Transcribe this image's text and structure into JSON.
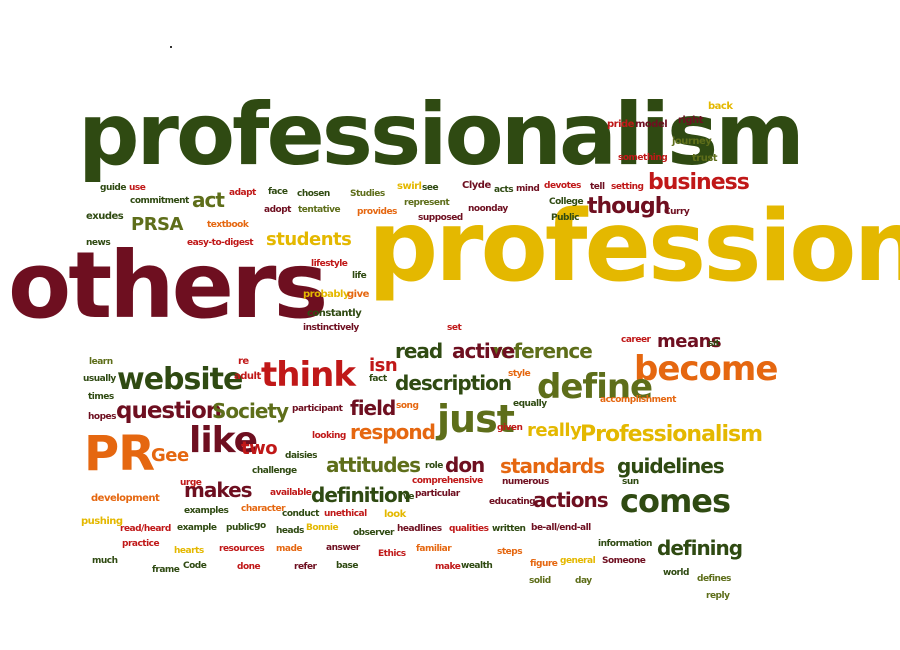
{
  "colors": {
    "dark_green": "#2f4a12",
    "olive_green": "#5e6e1a",
    "maroon": "#6e0f20",
    "red": "#c01818",
    "orange": "#e56710",
    "gold": "#e4b800",
    "background": "#ffffff"
  },
  "words": [
    {
      "text": "professionalism",
      "color": "dark_green"
    },
    {
      "text": "professional",
      "color": "gold"
    },
    {
      "text": "others",
      "color": "maroon"
    },
    {
      "text": "PR",
      "color": "orange"
    },
    {
      "text": "become",
      "color": "orange"
    },
    {
      "text": "website",
      "color": "dark_green"
    },
    {
      "text": "think",
      "color": "red"
    },
    {
      "text": "just",
      "color": "olive_green"
    },
    {
      "text": "comes",
      "color": "dark_green"
    },
    {
      "text": "like",
      "color": "maroon"
    },
    {
      "text": "define",
      "color": "olive_green"
    },
    {
      "text": "question",
      "color": "maroon"
    },
    {
      "text": "business",
      "color": "red"
    },
    {
      "text": "though",
      "color": "maroon"
    },
    {
      "text": "Professionalism",
      "color": "gold"
    },
    {
      "text": "standards",
      "color": "orange"
    },
    {
      "text": "guidelines",
      "color": "dark_green"
    },
    {
      "text": "defining",
      "color": "dark_green"
    },
    {
      "text": "actions",
      "color": "maroon"
    },
    {
      "text": "attitudes",
      "color": "olive_green"
    },
    {
      "text": "definition",
      "color": "dark_green"
    },
    {
      "text": "makes",
      "color": "maroon"
    },
    {
      "text": "description",
      "color": "dark_green"
    },
    {
      "text": "reference",
      "color": "olive_green"
    },
    {
      "text": "active",
      "color": "maroon"
    },
    {
      "text": "read",
      "color": "dark_green"
    },
    {
      "text": "respond",
      "color": "orange"
    },
    {
      "text": "field",
      "color": "maroon"
    },
    {
      "text": "Society",
      "color": "olive_green"
    },
    {
      "text": "students",
      "color": "gold"
    },
    {
      "text": "means",
      "color": "maroon"
    },
    {
      "text": "really",
      "color": "gold"
    },
    {
      "text": "two",
      "color": "red"
    },
    {
      "text": "don",
      "color": "maroon"
    },
    {
      "text": "Gee",
      "color": "orange"
    },
    {
      "text": "act",
      "color": "olive_green"
    },
    {
      "text": "PRSA",
      "color": "olive_green"
    },
    {
      "text": "isn",
      "color": "red"
    },
    {
      "text": "guide",
      "color": "dark_green"
    },
    {
      "text": "use",
      "color": "red"
    },
    {
      "text": "commitment",
      "color": "dark_green"
    },
    {
      "text": "adapt",
      "color": "red"
    },
    {
      "text": "face",
      "color": "dark_green"
    },
    {
      "text": "adopt",
      "color": "maroon"
    },
    {
      "text": "chosen",
      "color": "dark_green"
    },
    {
      "text": "tentative",
      "color": "olive_green"
    },
    {
      "text": "Studies",
      "color": "olive_green"
    },
    {
      "text": "provides",
      "color": "orange"
    },
    {
      "text": "swirl",
      "color": "gold"
    },
    {
      "text": "see",
      "color": "dark_green"
    },
    {
      "text": "represent",
      "color": "olive_green"
    },
    {
      "text": "supposed",
      "color": "maroon"
    },
    {
      "text": "Clyde",
      "color": "maroon"
    },
    {
      "text": "acts",
      "color": "dark_green"
    },
    {
      "text": "mind",
      "color": "maroon"
    },
    {
      "text": "noonday",
      "color": "maroon"
    },
    {
      "text": "devotes",
      "color": "red"
    },
    {
      "text": "College",
      "color": "dark_green"
    },
    {
      "text": "Public",
      "color": "dark_green"
    },
    {
      "text": "tell",
      "color": "maroon"
    },
    {
      "text": "setting",
      "color": "red"
    },
    {
      "text": "Curry",
      "color": "maroon"
    },
    {
      "text": "exudes",
      "color": "dark_green"
    },
    {
      "text": "textbook",
      "color": "orange"
    },
    {
      "text": "news",
      "color": "dark_green"
    },
    {
      "text": "easy-to-digest",
      "color": "red"
    },
    {
      "text": "lifestyle",
      "color": "red"
    },
    {
      "text": "life",
      "color": "dark_green"
    },
    {
      "text": "probably",
      "color": "gold"
    },
    {
      "text": "give",
      "color": "orange"
    },
    {
      "text": "constantly",
      "color": "dark_green"
    },
    {
      "text": "instinctively",
      "color": "maroon"
    },
    {
      "text": "pride",
      "color": "red"
    },
    {
      "text": "model",
      "color": "maroon"
    },
    {
      "text": "right",
      "color": "maroon"
    },
    {
      "text": "back",
      "color": "gold"
    },
    {
      "text": "journey",
      "color": "olive_green"
    },
    {
      "text": "something",
      "color": "red"
    },
    {
      "text": "trust",
      "color": "olive_green"
    },
    {
      "text": "career",
      "color": "red"
    },
    {
      "text": "sit",
      "color": "dark_green"
    },
    {
      "text": "set",
      "color": "red"
    },
    {
      "text": "learn",
      "color": "olive_green"
    },
    {
      "text": "usually",
      "color": "dark_green"
    },
    {
      "text": "re",
      "color": "red"
    },
    {
      "text": "adult",
      "color": "red"
    },
    {
      "text": "fact",
      "color": "dark_green"
    },
    {
      "text": "style",
      "color": "orange"
    },
    {
      "text": "equally",
      "color": "dark_green"
    },
    {
      "text": "times",
      "color": "dark_green"
    },
    {
      "text": "participant",
      "color": "maroon"
    },
    {
      "text": "song",
      "color": "orange"
    },
    {
      "text": "accomplishment",
      "color": "orange"
    },
    {
      "text": "hopes",
      "color": "maroon"
    },
    {
      "text": "looking",
      "color": "red"
    },
    {
      "text": "given",
      "color": "red"
    },
    {
      "text": "challenge",
      "color": "dark_green"
    },
    {
      "text": "daisies",
      "color": "dark_green"
    },
    {
      "text": "role",
      "color": "dark_green"
    },
    {
      "text": "comprehensive",
      "color": "red"
    },
    {
      "text": "numerous",
      "color": "maroon"
    },
    {
      "text": "sun",
      "color": "dark_green"
    },
    {
      "text": "urge",
      "color": "red"
    },
    {
      "text": "development",
      "color": "orange"
    },
    {
      "text": "available",
      "color": "red"
    },
    {
      "text": "ve",
      "color": "dark_green"
    },
    {
      "text": "particular",
      "color": "maroon"
    },
    {
      "text": "educating",
      "color": "maroon"
    },
    {
      "text": "examples",
      "color": "dark_green"
    },
    {
      "text": "character",
      "color": "orange"
    },
    {
      "text": "conduct",
      "color": "dark_green"
    },
    {
      "text": "unethical",
      "color": "red"
    },
    {
      "text": "look",
      "color": "gold"
    },
    {
      "text": "pushing",
      "color": "gold"
    },
    {
      "text": "read/heard",
      "color": "red"
    },
    {
      "text": "example",
      "color": "dark_green"
    },
    {
      "text": "public",
      "color": "dark_green"
    },
    {
      "text": "go",
      "color": "dark_green"
    },
    {
      "text": "heads",
      "color": "dark_green"
    },
    {
      "text": "Bonnie",
      "color": "gold"
    },
    {
      "text": "observer",
      "color": "dark_green"
    },
    {
      "text": "headlines",
      "color": "maroon"
    },
    {
      "text": "qualities",
      "color": "red"
    },
    {
      "text": "written",
      "color": "dark_green"
    },
    {
      "text": "be-all/end-all",
      "color": "maroon"
    },
    {
      "text": "practice",
      "color": "red"
    },
    {
      "text": "hearts",
      "color": "gold"
    },
    {
      "text": "resources",
      "color": "red"
    },
    {
      "text": "made",
      "color": "orange"
    },
    {
      "text": "answer",
      "color": "maroon"
    },
    {
      "text": "Ethics",
      "color": "red"
    },
    {
      "text": "familiar",
      "color": "orange"
    },
    {
      "text": "steps",
      "color": "orange"
    },
    {
      "text": "information",
      "color": "dark_green"
    },
    {
      "text": "much",
      "color": "dark_green"
    },
    {
      "text": "frame",
      "color": "dark_green"
    },
    {
      "text": "Code",
      "color": "dark_green"
    },
    {
      "text": "done",
      "color": "red"
    },
    {
      "text": "refer",
      "color": "maroon"
    },
    {
      "text": "base",
      "color": "dark_green"
    },
    {
      "text": "make",
      "color": "red"
    },
    {
      "text": "wealth",
      "color": "dark_green"
    },
    {
      "text": "figure",
      "color": "orange"
    },
    {
      "text": "general",
      "color": "gold"
    },
    {
      "text": "Someone",
      "color": "maroon"
    },
    {
      "text": "world",
      "color": "dark_green"
    },
    {
      "text": "defines",
      "color": "olive_green"
    },
    {
      "text": "solid",
      "color": "olive_green"
    },
    {
      "text": "day",
      "color": "olive_green"
    },
    {
      "text": "reply",
      "color": "olive_green"
    }
  ]
}
